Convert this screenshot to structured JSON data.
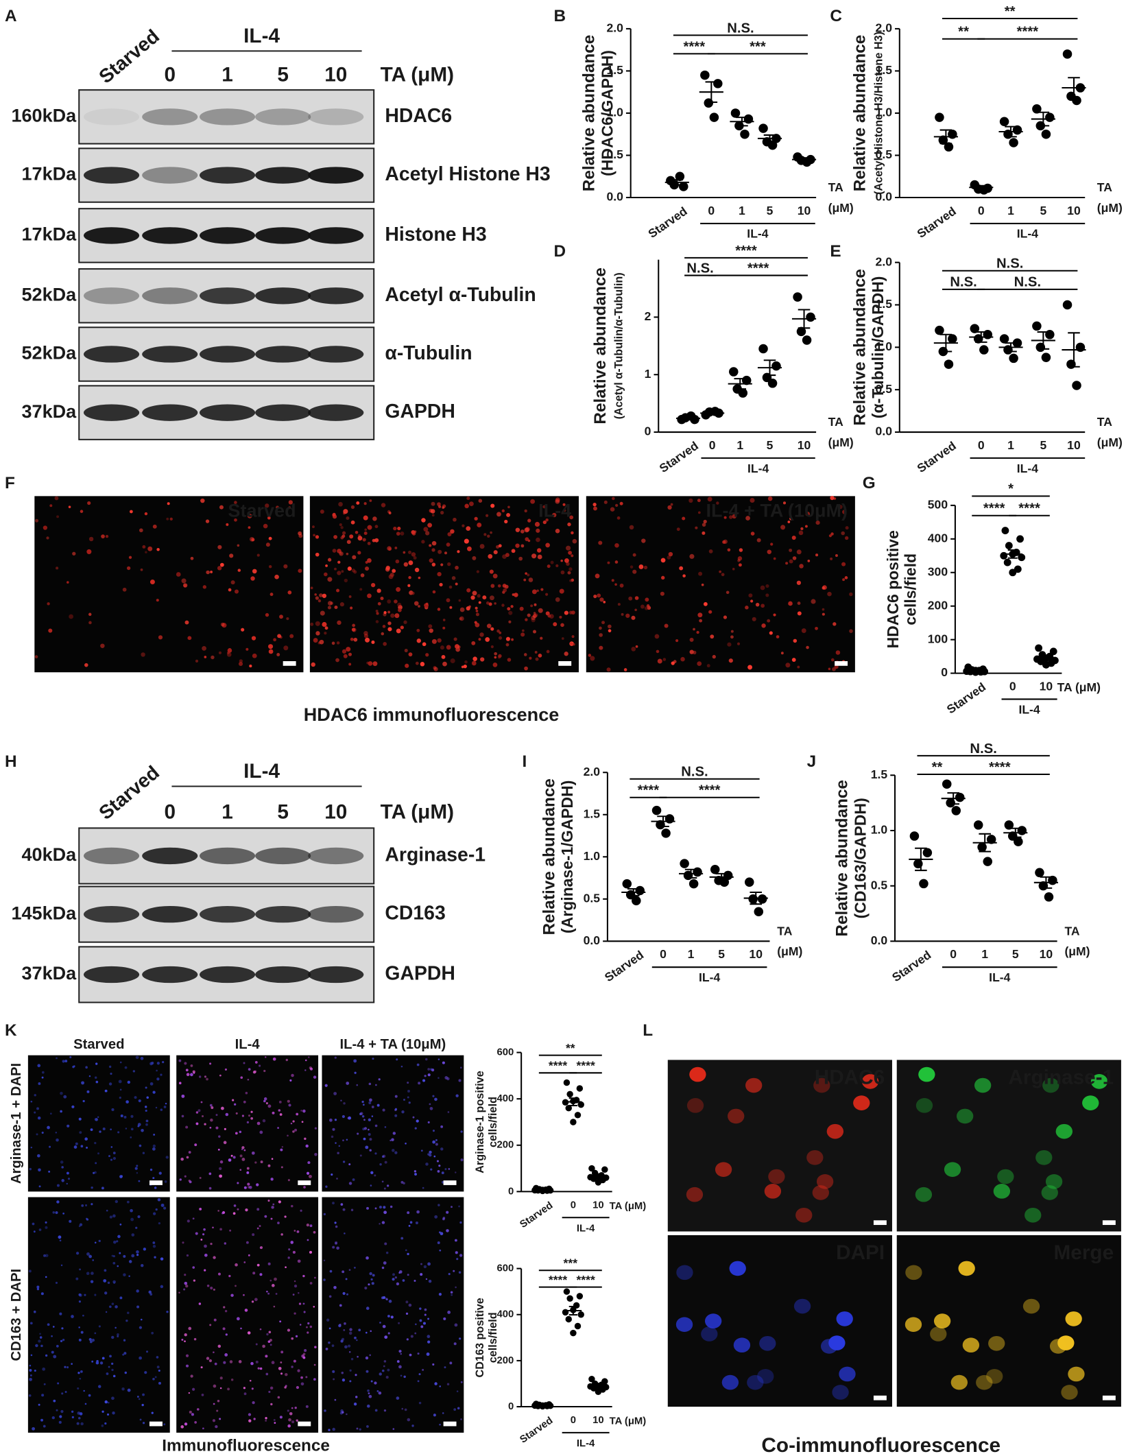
{
  "panel_labels": [
    "A",
    "B",
    "C",
    "D",
    "E",
    "F",
    "G",
    "H",
    "I",
    "J",
    "K",
    "L"
  ],
  "blots": [
    {
      "header": {
        "starved": "Starved",
        "group": "IL-4",
        "lanes": [
          "0",
          "1",
          "5",
          "10"
        ],
        "unit": "TA (μM)"
      },
      "rows": [
        {
          "size": "160kDa",
          "name": "HDAC6"
        },
        {
          "size": "17kDa",
          "name": "Acetyl Histone H3"
        },
        {
          "size": "17kDa",
          "name": "Histone H3"
        },
        {
          "size": "52kDa",
          "name": "Acetyl α-Tubulin"
        },
        {
          "size": "52kDa",
          "name": "α-Tubulin"
        },
        {
          "size": "37kDa",
          "name": "GAPDH"
        }
      ]
    },
    {
      "header": {
        "starved": "Starved",
        "group": "IL-4",
        "lanes": [
          "0",
          "1",
          "5",
          "10"
        ],
        "unit": "TA (μM)"
      },
      "rows": [
        {
          "size": "40kDa",
          "name": "Arginase-1"
        },
        {
          "size": "145kDa",
          "name": "CD163"
        },
        {
          "size": "37kDa",
          "name": "GAPDH"
        }
      ]
    }
  ],
  "images": {
    "F": {
      "titles": [
        "Starved",
        "IL-4",
        "IL-4 + TA (10μM)"
      ],
      "caption": "HDAC6 immunofluorescence"
    },
    "K": {
      "col_titles": [
        "Starved",
        "IL-4",
        "IL-4 + TA (10μM)"
      ],
      "row_titles": [
        "Arginase-1 + DAPI",
        "CD163 + DAPI"
      ],
      "caption": "Immunofluorescence"
    },
    "L": {
      "titles": [
        "HDAC6",
        "Arginase-1",
        "DAPI",
        "Merge"
      ],
      "caption": "Co-immunofluorescence"
    }
  },
  "chart_data": [
    {
      "type": "dotplot",
      "ylabel": [
        "Relative abundance",
        "(HDAC6/GAPDH)"
      ],
      "categories": [
        "Starved",
        "0",
        "1",
        "5",
        "10"
      ],
      "group_label": "IL-4",
      "unit_label": [
        "TA",
        "(μM)"
      ],
      "points": [
        [
          0.2,
          0.13,
          0.15,
          0.25
        ],
        [
          1.45,
          1.35,
          1.12,
          0.95
        ],
        [
          1.0,
          0.93,
          0.85,
          0.75
        ],
        [
          0.82,
          0.7,
          0.66,
          0.62
        ],
        [
          0.48,
          0.45,
          0.44,
          0.42
        ]
      ],
      "means": [
        0.18,
        1.25,
        0.9,
        0.7,
        0.45
      ],
      "errors": [
        0.03,
        0.12,
        0.05,
        0.04,
        0.02
      ],
      "ylim": [
        0,
        2
      ],
      "yticks": [
        {
          "value": 0,
          "label": "0.0"
        },
        0.5,
        {
          "value": 1,
          "label": "1.0"
        },
        1.5,
        {
          "value": 2,
          "label": "2.0"
        }
      ],
      "significance": [
        "N.S.",
        "****",
        "***"
      ],
      "color": "#000000"
    },
    {
      "type": "dotplot",
      "ylabel": [
        "Relative abundance",
        "(Acetyl Histone H3/Histone H3)"
      ],
      "categories": [
        "Starved",
        "0",
        "1",
        "5",
        "10"
      ],
      "group_label": "IL-4",
      "unit_label": [
        "TA",
        "(μM)"
      ],
      "points": [
        [
          0.95,
          0.75,
          0.68,
          0.6
        ],
        [
          0.15,
          0.11,
          0.1,
          0.09
        ],
        [
          0.9,
          0.8,
          0.75,
          0.65
        ],
        [
          1.05,
          0.95,
          0.85,
          0.75
        ],
        [
          1.7,
          1.3,
          1.2,
          1.15
        ]
      ],
      "means": [
        0.72,
        0.12,
        0.78,
        0.93,
        1.3
      ],
      "errors": [
        0.08,
        0.02,
        0.06,
        0.08,
        0.12
      ],
      "ylim": [
        0,
        2
      ],
      "yticks": [
        {
          "value": 0,
          "label": "0.0"
        },
        0.5,
        {
          "value": 1,
          "label": "1.0"
        },
        1.5,
        {
          "value": 2,
          "label": "2.0"
        }
      ],
      "significance": [
        "**",
        "**",
        "****"
      ],
      "color": "#000000"
    },
    {
      "type": "dotplot",
      "ylabel": [
        "Relative abundance",
        "(Acetyl α-Tubulin/α-Tubulin)"
      ],
      "categories": [
        "Starved",
        "0",
        "1",
        "5",
        "10"
      ],
      "group_label": "IL-4",
      "unit_label": [
        "TA",
        "(μM)"
      ],
      "points": [
        [
          0.22,
          0.22,
          0.25,
          0.28
        ],
        [
          0.3,
          0.33,
          0.35,
          0.36
        ],
        [
          1.05,
          0.9,
          0.75,
          0.68
        ],
        [
          1.45,
          1.15,
          0.95,
          0.85
        ],
        [
          2.35,
          2.0,
          1.75,
          1.6
        ]
      ],
      "means": [
        0.24,
        0.33,
        0.84,
        1.12,
        1.97
      ],
      "errors": [
        0.02,
        0.02,
        0.09,
        0.13,
        0.16
      ],
      "ylim": [
        0,
        3
      ],
      "yticks": [
        0,
        1,
        2
      ],
      "significance": [
        "****",
        "N.S.",
        "****"
      ],
      "color": "#000000"
    },
    {
      "type": "dotplot",
      "ylabel": [
        "Relative abundance",
        "(α-Tubulin/GAPDH)"
      ],
      "categories": [
        "Starved",
        "0",
        "1",
        "5",
        "10"
      ],
      "group_label": "IL-4",
      "unit_label": [
        "TA",
        "(μM)"
      ],
      "points": [
        [
          1.2,
          1.1,
          0.95,
          0.8
        ],
        [
          1.22,
          1.15,
          1.1,
          0.97
        ],
        [
          1.1,
          1.05,
          0.97,
          0.87
        ],
        [
          1.25,
          1.15,
          1.0,
          0.88
        ],
        [
          1.5,
          1.0,
          0.8,
          0.55
        ]
      ],
      "means": [
        1.05,
        1.12,
        1.0,
        1.08,
        0.97
      ],
      "errors": [
        0.1,
        0.06,
        0.05,
        0.1,
        0.2
      ],
      "ylim": [
        0,
        2
      ],
      "yticks": [
        {
          "value": 0,
          "label": "0.0"
        },
        0.5,
        {
          "value": 1,
          "label": "1.0"
        },
        1.5,
        {
          "value": 2,
          "label": "2.0"
        }
      ],
      "significance": [
        "N.S.",
        "N.S.",
        "N.S."
      ],
      "color": "#000000"
    },
    {
      "type": "dotplot",
      "ylabel": [
        "HDAC6 positive",
        "cells/field"
      ],
      "categories": [
        "Starved",
        "0",
        "10"
      ],
      "group_label": "IL-4",
      "unit_label": [
        "TA (μM)"
      ],
      "points": [
        [
          18,
          12,
          10,
          8,
          8,
          6,
          5,
          5,
          4,
          3
        ],
        [
          425,
          400,
          380,
          360,
          355,
          350,
          345,
          330,
          310,
          300
        ],
        [
          75,
          65,
          55,
          50,
          45,
          42,
          38,
          35,
          30,
          25
        ]
      ],
      "means": [
        8,
        355,
        46
      ],
      "errors": [
        1.5,
        12,
        5
      ],
      "ylim": [
        0,
        500
      ],
      "yticks": [
        0,
        100,
        200,
        300,
        400,
        500
      ],
      "significance": [
        "*",
        "****",
        "****"
      ],
      "color": "#000000"
    },
    {
      "type": "dotplot",
      "ylabel": [
        "Relative abundance",
        "(Arginase-1/GAPDH)"
      ],
      "categories": [
        "Starved",
        "0",
        "1",
        "5",
        "10"
      ],
      "group_label": "IL-4",
      "unit_label": [
        "TA",
        "(μM)"
      ],
      "points": [
        [
          0.68,
          0.6,
          0.55,
          0.48
        ],
        [
          1.55,
          1.45,
          1.38,
          1.28
        ],
        [
          0.92,
          0.82,
          0.78,
          0.68
        ],
        [
          0.85,
          0.78,
          0.72,
          0.7
        ],
        [
          0.7,
          0.5,
          0.5,
          0.35
        ]
      ],
      "means": [
        0.58,
        1.42,
        0.8,
        0.76,
        0.51
      ],
      "errors": [
        0.04,
        0.06,
        0.05,
        0.04,
        0.07
      ],
      "ylim": [
        0,
        2
      ],
      "yticks": [
        {
          "value": 0,
          "label": "0.0"
        },
        0.5,
        {
          "value": 1,
          "label": "1.0"
        },
        1.5,
        {
          "value": 2,
          "label": "2.0"
        }
      ],
      "significance": [
        "N.S.",
        "****",
        "****"
      ],
      "color": "#000000"
    },
    {
      "type": "dotplot",
      "ylabel": [
        "Relative abundance",
        "(CD163/GAPDH)"
      ],
      "categories": [
        "Starved",
        "0",
        "1",
        "5",
        "10"
      ],
      "group_label": "IL-4",
      "unit_label": [
        "TA",
        "(μM)"
      ],
      "points": [
        [
          0.95,
          0.8,
          0.7,
          0.52
        ],
        [
          1.42,
          1.3,
          1.25,
          1.18
        ],
        [
          1.05,
          0.92,
          0.85,
          0.72
        ],
        [
          1.05,
          1.0,
          0.95,
          0.9
        ],
        [
          0.62,
          0.55,
          0.5,
          0.4
        ]
      ],
      "means": [
        0.74,
        1.29,
        0.89,
        0.98,
        0.53
      ],
      "errors": [
        0.1,
        0.05,
        0.08,
        0.04,
        0.05
      ],
      "ylim": [
        0,
        1.5
      ],
      "yticks": [
        {
          "value": 0,
          "label": "0.0"
        },
        0.5,
        {
          "value": 1,
          "label": "1.0"
        },
        1.5
      ],
      "significance": [
        "N.S.",
        "**",
        "****"
      ],
      "color": "#000000"
    },
    {
      "type": "dotplot",
      "ylabel": [
        "Arginase-1 positive",
        "cells/field"
      ],
      "categories": [
        "Starved",
        "0",
        "10"
      ],
      "group_label": "IL-4",
      "unit_label": [
        "TA (μM)"
      ],
      "points": [
        [
          15,
          12,
          10,
          8,
          7,
          6,
          5,
          5,
          4,
          3
        ],
        [
          470,
          445,
          420,
          395,
          390,
          385,
          375,
          360,
          330,
          300
        ],
        [
          100,
          95,
          80,
          70,
          65,
          62,
          60,
          55,
          50,
          40
        ]
      ],
      "means": [
        8,
        387,
        68
      ],
      "errors": [
        1.2,
        16,
        6
      ],
      "ylim": [
        0,
        600
      ],
      "yticks": [
        0,
        200,
        400,
        600
      ],
      "significance": [
        "**",
        "****",
        "****"
      ],
      "color": "#000000"
    },
    {
      "type": "dotplot",
      "ylabel": [
        "CD163 positive",
        "cells/field"
      ],
      "categories": [
        "Starved",
        "0",
        "10"
      ],
      "group_label": "IL-4",
      "unit_label": [
        "TA (μM)"
      ],
      "points": [
        [
          12,
          10,
          8,
          6,
          5,
          5,
          4,
          3,
          3,
          2
        ],
        [
          500,
          480,
          470,
          440,
          420,
          410,
          400,
          380,
          350,
          320
        ],
        [
          120,
          110,
          100,
          95,
          90,
          88,
          85,
          80,
          75,
          65
        ]
      ],
      "means": [
        6,
        417,
        91
      ],
      "errors": [
        1,
        18,
        5
      ],
      "ylim": [
        0,
        600
      ],
      "yticks": [
        0,
        200,
        400,
        600
      ],
      "significance": [
        "***",
        "****",
        "****"
      ],
      "color": "#000000"
    }
  ]
}
